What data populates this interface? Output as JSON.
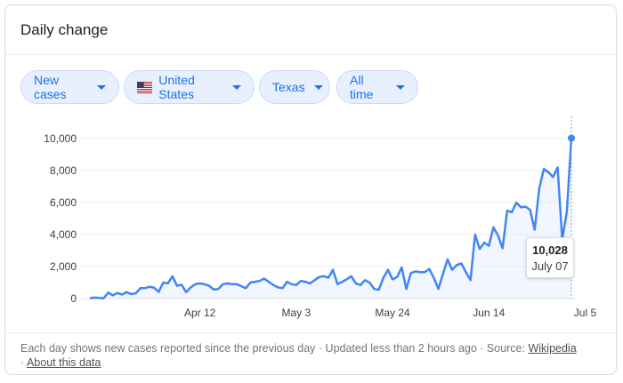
{
  "card": {
    "title": "Daily change"
  },
  "filters": {
    "metric": "New cases",
    "country": "United States",
    "region": "Texas",
    "range": "All time"
  },
  "tooltip": {
    "value": "10,028",
    "date": "July 07"
  },
  "footer": {
    "text": "Each day shows new cases reported since the previous day · Updated less than 2 hours ago · Source: ",
    "source_link": "Wikipedia",
    "sep": " · ",
    "about_link": "About this data"
  },
  "colors": {
    "line": "#4285f4",
    "chip_text": "#1a73e8",
    "chip_bg": "#e8f0fe"
  },
  "chart_data": {
    "type": "area",
    "title": "",
    "xlabel": "",
    "ylabel": "",
    "ylim": [
      0,
      10000
    ],
    "yticks": [
      0,
      2000,
      4000,
      6000,
      8000,
      10000
    ],
    "ytick_labels": [
      "0",
      "2,000",
      "4,000",
      "6,000",
      "8,000",
      "10,000"
    ],
    "xtick_labels": [
      "Apr 12",
      "May 3",
      "May 24",
      "Jun 14",
      "Jul 5"
    ],
    "xtick_index": [
      24,
      45,
      66,
      87,
      108
    ],
    "grid": true,
    "series": [
      {
        "values": [
          30,
          60,
          40,
          20,
          380,
          200,
          350,
          250,
          400,
          280,
          330,
          650,
          650,
          740,
          680,
          420,
          1000,
          950,
          1400,
          800,
          870,
          400,
          700,
          900,
          950,
          900,
          800,
          570,
          600,
          900,
          950,
          900,
          900,
          780,
          650,
          1000,
          1050,
          1100,
          1250,
          1050,
          850,
          700,
          650,
          1050,
          900,
          850,
          1100,
          1050,
          950,
          1150,
          1350,
          1400,
          1300,
          1800,
          900,
          1050,
          1200,
          1400,
          950,
          850,
          1150,
          1000,
          600,
          550,
          1300,
          1800,
          1200,
          1350,
          1950,
          600,
          1600,
          1700,
          1650,
          1650,
          1850,
          1300,
          600,
          1550,
          2450,
          1800,
          2100,
          2200,
          1650,
          1150,
          4000,
          3100,
          3500,
          3300,
          4450,
          3950,
          3150,
          5500,
          5400,
          6000,
          5700,
          5750,
          5550,
          4300,
          6900,
          8100,
          7900,
          7600,
          8200,
          3700,
          5400,
          10028
        ]
      }
    ]
  }
}
